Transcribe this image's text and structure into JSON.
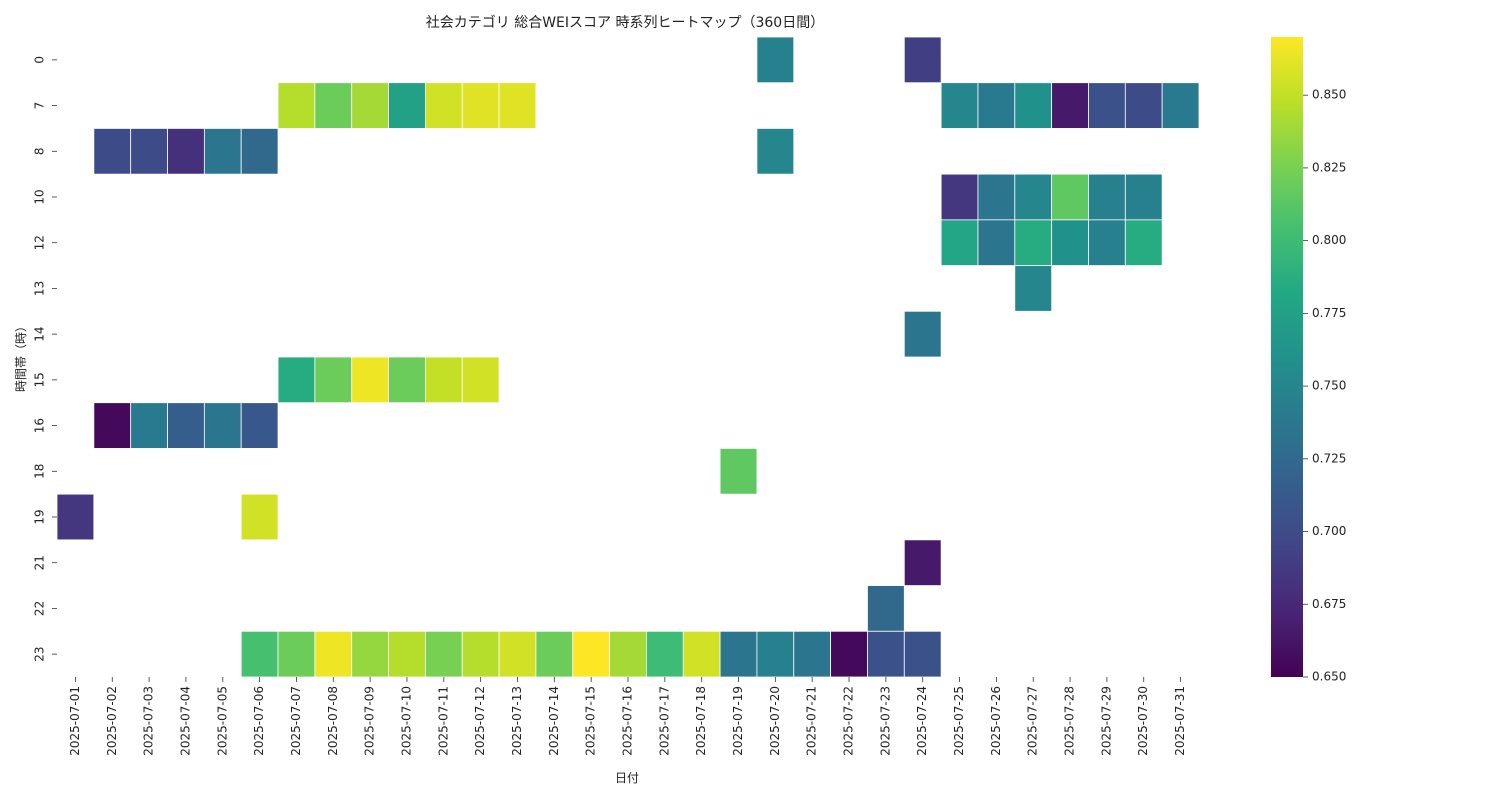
{
  "chart_data": {
    "type": "heatmap",
    "title": "社会カテゴリ 総合WEIスコア 時系列ヒートマップ（360日間）",
    "xlabel": "日付",
    "ylabel": "時間帯（時）",
    "x_categories": [
      "2025-07-01",
      "2025-07-02",
      "2025-07-03",
      "2025-07-04",
      "2025-07-05",
      "2025-07-06",
      "2025-07-07",
      "2025-07-08",
      "2025-07-09",
      "2025-07-10",
      "2025-07-11",
      "2025-07-12",
      "2025-07-13",
      "2025-07-14",
      "2025-07-15",
      "2025-07-16",
      "2025-07-17",
      "2025-07-18",
      "2025-07-19",
      "2025-07-20",
      "2025-07-21",
      "2025-07-22",
      "2025-07-23",
      "2025-07-24",
      "2025-07-25",
      "2025-07-26",
      "2025-07-27",
      "2025-07-28",
      "2025-07-29",
      "2025-07-30",
      "2025-07-31"
    ],
    "y_categories": [
      "0",
      "7",
      "8",
      "10",
      "12",
      "13",
      "14",
      "15",
      "16",
      "18",
      "19",
      "21",
      "22",
      "23"
    ],
    "values": [
      [
        null,
        null,
        null,
        null,
        null,
        null,
        null,
        null,
        null,
        null,
        null,
        null,
        null,
        null,
        null,
        null,
        null,
        null,
        null,
        0.745,
        null,
        null,
        null,
        0.69,
        null,
        null,
        null,
        null,
        null,
        null,
        null
      ],
      [
        null,
        null,
        null,
        null,
        null,
        null,
        0.845,
        0.82,
        0.84,
        0.775,
        0.855,
        0.86,
        0.86,
        null,
        null,
        null,
        null,
        null,
        null,
        null,
        null,
        null,
        null,
        null,
        0.75,
        0.74,
        0.76,
        0.665,
        0.705,
        0.7,
        0.74
      ],
      [
        null,
        0.7,
        0.7,
        0.68,
        0.735,
        0.725,
        null,
        null,
        null,
        null,
        null,
        null,
        null,
        null,
        null,
        null,
        null,
        null,
        null,
        0.75,
        null,
        null,
        null,
        null,
        null,
        null,
        null,
        null,
        null,
        null,
        null
      ],
      [
        null,
        null,
        null,
        null,
        null,
        null,
        null,
        null,
        null,
        null,
        null,
        null,
        null,
        null,
        null,
        null,
        null,
        null,
        null,
        null,
        null,
        null,
        null,
        null,
        0.685,
        0.735,
        0.75,
        0.815,
        0.745,
        0.745,
        null
      ],
      [
        null,
        null,
        null,
        null,
        null,
        null,
        null,
        null,
        null,
        null,
        null,
        null,
        null,
        null,
        null,
        null,
        null,
        null,
        null,
        null,
        null,
        null,
        null,
        null,
        0.78,
        0.735,
        0.785,
        0.76,
        0.745,
        0.785,
        null
      ],
      [
        null,
        null,
        null,
        null,
        null,
        null,
        null,
        null,
        null,
        null,
        null,
        null,
        null,
        null,
        null,
        null,
        null,
        null,
        null,
        null,
        null,
        null,
        null,
        null,
        null,
        null,
        0.75,
        null,
        null,
        null,
        null
      ],
      [
        null,
        null,
        null,
        null,
        null,
        null,
        null,
        null,
        null,
        null,
        null,
        null,
        null,
        null,
        null,
        null,
        null,
        null,
        null,
        null,
        null,
        null,
        null,
        0.735,
        null,
        null,
        null,
        null,
        null,
        null,
        null
      ],
      [
        null,
        null,
        null,
        null,
        null,
        null,
        0.785,
        0.82,
        0.865,
        0.82,
        0.85,
        0.855,
        null,
        null,
        null,
        null,
        null,
        null,
        null,
        null,
        null,
        null,
        null,
        null,
        null,
        null,
        null,
        null,
        null,
        null,
        null
      ],
      [
        null,
        0.655,
        0.74,
        0.715,
        0.735,
        0.71,
        null,
        null,
        null,
        null,
        null,
        null,
        null,
        null,
        null,
        null,
        null,
        null,
        null,
        null,
        null,
        null,
        null,
        null,
        null,
        null,
        null,
        null,
        null,
        null,
        null
      ],
      [
        null,
        null,
        null,
        null,
        null,
        null,
        null,
        null,
        null,
        null,
        null,
        null,
        null,
        null,
        null,
        null,
        null,
        null,
        0.815,
        null,
        null,
        null,
        null,
        null,
        null,
        null,
        null,
        null,
        null,
        null,
        null
      ],
      [
        0.685,
        null,
        null,
        null,
        null,
        0.855,
        null,
        null,
        null,
        null,
        null,
        null,
        null,
        null,
        null,
        null,
        null,
        null,
        null,
        null,
        null,
        null,
        null,
        null,
        null,
        null,
        null,
        null,
        null,
        null,
        null
      ],
      [
        null,
        null,
        null,
        null,
        null,
        null,
        null,
        null,
        null,
        null,
        null,
        null,
        null,
        null,
        null,
        null,
        null,
        null,
        null,
        null,
        null,
        null,
        null,
        0.665,
        null,
        null,
        null,
        null,
        null,
        null,
        null
      ],
      [
        null,
        null,
        null,
        null,
        null,
        null,
        null,
        null,
        null,
        null,
        null,
        null,
        null,
        null,
        null,
        null,
        null,
        null,
        null,
        null,
        null,
        null,
        0.725,
        null,
        null,
        null,
        null,
        null,
        null,
        null,
        null
      ],
      [
        null,
        null,
        null,
        null,
        null,
        0.805,
        0.82,
        0.865,
        0.835,
        0.845,
        0.825,
        0.845,
        0.855,
        0.82,
        0.87,
        0.84,
        0.8,
        0.855,
        0.735,
        0.745,
        0.735,
        0.655,
        0.705,
        0.705,
        null,
        null,
        null,
        null,
        null,
        null,
        null
      ]
    ],
    "colorbar": {
      "min": 0.65,
      "max": 0.87,
      "ticks": [
        "0.650",
        "0.675",
        "0.700",
        "0.725",
        "0.750",
        "0.775",
        "0.800",
        "0.825",
        "0.850"
      ],
      "colormap": "viridis"
    },
    "grid": false,
    "legend": "colorbar-right"
  }
}
